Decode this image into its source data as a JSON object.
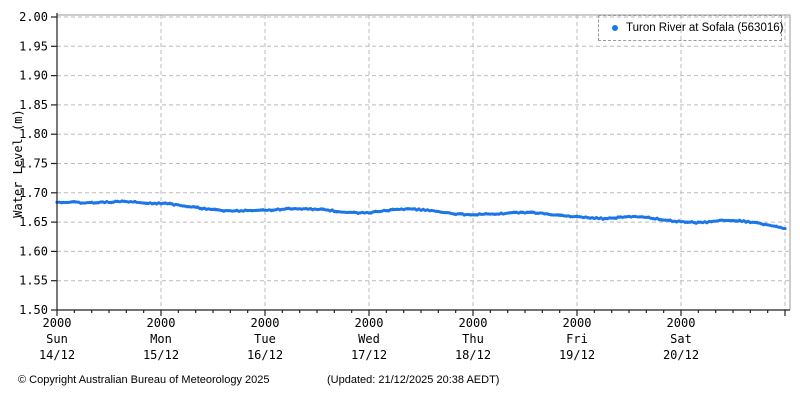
{
  "chart_data": {
    "type": "line",
    "title": "",
    "xlabel": "",
    "ylabel": "Water Level (m)",
    "ylim": [
      1.5,
      2.0
    ],
    "ytick_step": 0.05,
    "xlim_hours": [
      0,
      168
    ],
    "x_major_step_hours": 24,
    "x_minor_step_hours": 4,
    "grid": true,
    "legend_position": "top-right",
    "x_tick_labels": [
      {
        "hour": 0,
        "time": "2000",
        "day": "Sun",
        "date": "14/12"
      },
      {
        "hour": 24,
        "time": "2000",
        "day": "Mon",
        "date": "15/12"
      },
      {
        "hour": 48,
        "time": "2000",
        "day": "Tue",
        "date": "16/12"
      },
      {
        "hour": 72,
        "time": "2000",
        "day": "Wed",
        "date": "17/12"
      },
      {
        "hour": 96,
        "time": "2000",
        "day": "Thu",
        "date": "18/12"
      },
      {
        "hour": 120,
        "time": "2000",
        "day": "Fri",
        "date": "19/12"
      },
      {
        "hour": 144,
        "time": "2000",
        "day": "Sat",
        "date": "20/12"
      }
    ],
    "series": [
      {
        "name": "Turon River at Sofala (563016)",
        "color": "#1d76e8",
        "x_hours": [
          0,
          2,
          4,
          6,
          8,
          10,
          12,
          14,
          16,
          18,
          20,
          22,
          24,
          26,
          28,
          30,
          32,
          34,
          36,
          38,
          40,
          42,
          44,
          46,
          48,
          50,
          52,
          54,
          56,
          58,
          60,
          62,
          64,
          66,
          68,
          70,
          72,
          74,
          76,
          78,
          80,
          82,
          84,
          86,
          88,
          90,
          92,
          94,
          96,
          98,
          100,
          102,
          104,
          106,
          108,
          110,
          112,
          114,
          116,
          118,
          120,
          122,
          124,
          126,
          128,
          130,
          132,
          134,
          136,
          138,
          140,
          142,
          144,
          146,
          148,
          150,
          152,
          154,
          156,
          158,
          160,
          162,
          164,
          166,
          168
        ],
        "values": [
          1.684,
          1.684,
          1.684,
          1.683,
          1.683,
          1.684,
          1.684,
          1.685,
          1.685,
          1.684,
          1.683,
          1.682,
          1.682,
          1.681,
          1.679,
          1.677,
          1.675,
          1.673,
          1.671,
          1.67,
          1.669,
          1.669,
          1.67,
          1.67,
          1.67,
          1.671,
          1.672,
          1.673,
          1.673,
          1.672,
          1.672,
          1.671,
          1.669,
          1.667,
          1.666,
          1.666,
          1.666,
          1.668,
          1.67,
          1.671,
          1.672,
          1.672,
          1.671,
          1.67,
          1.668,
          1.666,
          1.664,
          1.663,
          1.663,
          1.663,
          1.664,
          1.664,
          1.665,
          1.666,
          1.666,
          1.666,
          1.665,
          1.663,
          1.661,
          1.66,
          1.659,
          1.658,
          1.657,
          1.656,
          1.657,
          1.658,
          1.659,
          1.659,
          1.658,
          1.656,
          1.654,
          1.652,
          1.651,
          1.65,
          1.649,
          1.65,
          1.652,
          1.653,
          1.653,
          1.652,
          1.65,
          1.648,
          1.645,
          1.642,
          1.639
        ]
      }
    ]
  },
  "colors": {
    "line": "#1d76e8",
    "grid": "#bbbbbb",
    "frame": "#999999",
    "axis": "#222222",
    "text": "#000000"
  },
  "footer": {
    "copyright": "© Copyright Australian Bureau of Meteorology 2025",
    "updated": "(Updated: 21/12/2025 20:38 AEDT)"
  }
}
